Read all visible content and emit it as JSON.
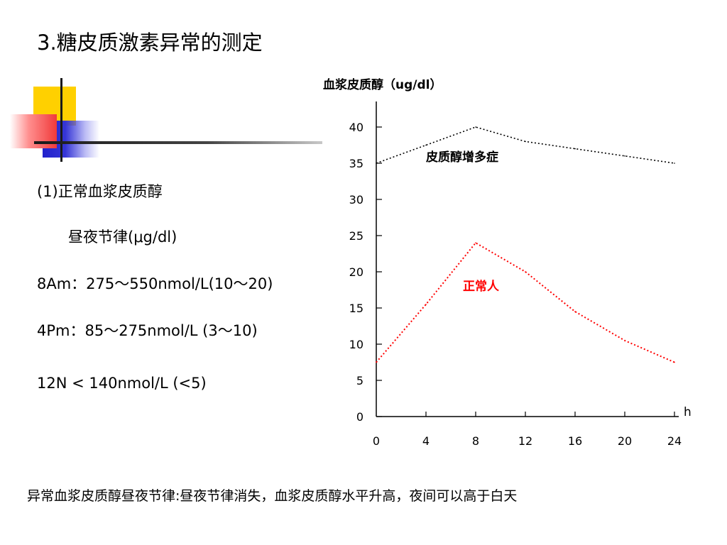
{
  "title": "3.糖皮质激素异常的测定",
  "left": {
    "heading": "(1)正常血浆皮质醇",
    "subheading": "昼夜节律(μg/dl)",
    "line_8am": "8Am：275～550nmol/L(10～20)",
    "line_4pm": "4Pm：85～275nmol/L (3～10)",
    "line_12n": "12N < 140nmol/L (<5)"
  },
  "footer": "异常血浆皮质醇昼夜节律:昼夜节律消失，血浆皮质醇水平升高，夜间可以高于白天",
  "chart_data": {
    "type": "line",
    "ylabel": "血浆皮质醇（ug/dl）",
    "xlabel": "h",
    "xlim": [
      0,
      24
    ],
    "ylim": [
      0,
      40
    ],
    "x_ticks": [
      "0",
      "4",
      "8",
      "12",
      "16",
      "20",
      "24"
    ],
    "y_ticks": [
      "0",
      "5",
      "10",
      "15",
      "20",
      "25",
      "30",
      "35",
      "40"
    ],
    "grid": false,
    "series": [
      {
        "name": "皮质醇增多症",
        "color": "#000000",
        "x": [
          0,
          4,
          8,
          12,
          16,
          20,
          24
        ],
        "values": [
          35,
          37.5,
          40,
          38,
          37,
          36,
          35
        ]
      },
      {
        "name": "正常人",
        "color": "#ff0000",
        "x": [
          0,
          4,
          8,
          12,
          16,
          20,
          24
        ],
        "values": [
          7.5,
          15.5,
          24,
          20,
          14.5,
          10.5,
          7.5
        ]
      }
    ]
  }
}
